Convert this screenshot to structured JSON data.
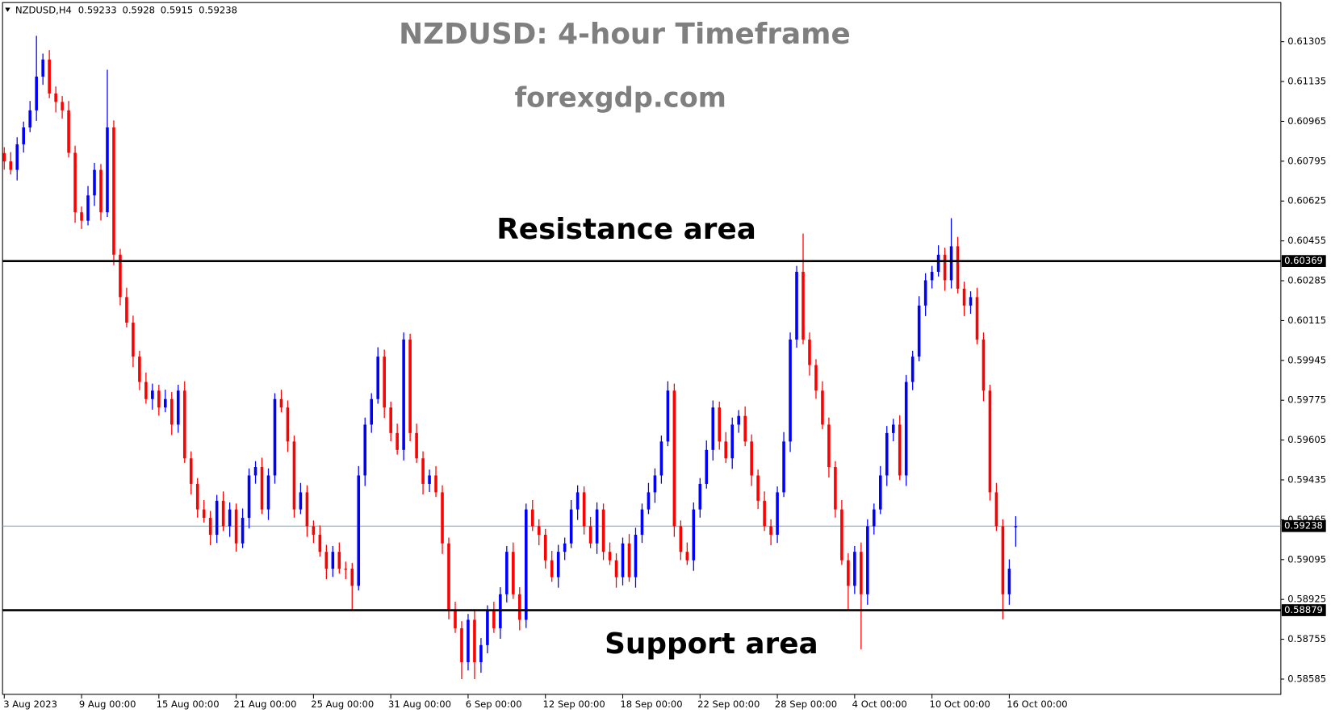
{
  "chart_data": {
    "type": "candlestick",
    "symbol": "NZDUSD,H4",
    "title": "NZDUSD: 4-hour Timeframe",
    "subtitle": "forexgdp.com",
    "up_color": "#0000ff",
    "down_color": "#ff0000",
    "ylim": [
      0.5852,
      0.61472
    ],
    "yticks": [
      0.61305,
      0.61135,
      0.60965,
      0.60795,
      0.60625,
      0.60455,
      0.60285,
      0.60115,
      0.59945,
      0.59775,
      0.59605,
      0.59435,
      0.59265,
      0.59095,
      0.58925,
      0.58755,
      0.58585
    ],
    "levels": [
      {
        "name": "Resistance area",
        "value": 0.60369
      },
      {
        "name": "Support area",
        "value": 0.58879
      }
    ],
    "categories": [
      "3 Aug 2023",
      null,
      null,
      null,
      null,
      null,
      null,
      null,
      null,
      null,
      null,
      null,
      "9 Aug 00:00",
      null,
      null,
      null,
      null,
      null,
      null,
      null,
      null,
      null,
      null,
      null,
      "15 Aug 00:00",
      null,
      null,
      null,
      null,
      null,
      null,
      null,
      null,
      null,
      null,
      null,
      "21 Aug 00:00",
      null,
      null,
      null,
      null,
      null,
      null,
      null,
      null,
      null,
      null,
      null,
      "25 Aug 00:00",
      null,
      null,
      null,
      null,
      null,
      null,
      null,
      null,
      null,
      null,
      null,
      "31 Aug 00:00",
      null,
      null,
      null,
      null,
      null,
      null,
      null,
      null,
      null,
      null,
      null,
      "6 Sep 00:00",
      null,
      null,
      null,
      null,
      null,
      null,
      null,
      null,
      null,
      null,
      null,
      "12 Sep 00:00",
      null,
      null,
      null,
      null,
      null,
      null,
      null,
      null,
      null,
      null,
      null,
      "18 Sep 00:00",
      null,
      null,
      null,
      null,
      null,
      null,
      null,
      null,
      null,
      null,
      null,
      "22 Sep 00:00",
      null,
      null,
      null,
      null,
      null,
      null,
      null,
      null,
      null,
      null,
      null,
      "28 Sep 00:00",
      null,
      null,
      null,
      null,
      null,
      null,
      null,
      null,
      null,
      null,
      null,
      "4 Oct 00:00",
      null,
      null,
      null,
      null,
      null,
      null,
      null,
      null,
      null,
      null,
      null,
      "10 Oct 00:00",
      null,
      null,
      null,
      null,
      null,
      null,
      null,
      null,
      null,
      null,
      null,
      "16 Oct 00:00",
      null
    ],
    "values": [
      [
        0.6083,
        0.60855,
        0.60759,
        0.60794
      ],
      [
        0.60794,
        0.60834,
        0.60738,
        0.60758
      ],
      [
        0.60758,
        0.60897,
        0.60713,
        0.60867
      ],
      [
        0.60867,
        0.60964,
        0.60832,
        0.60939
      ],
      [
        0.60939,
        0.61052,
        0.60919,
        0.61012
      ],
      [
        0.61012,
        0.6133,
        0.60967,
        0.61156
      ],
      [
        0.61156,
        0.61254,
        0.61121,
        0.61229
      ],
      [
        0.61229,
        0.61269,
        0.61064,
        0.61084
      ],
      [
        0.61084,
        0.61114,
        0.61003,
        0.61048
      ],
      [
        0.61048,
        0.61073,
        0.60977,
        0.61012
      ],
      [
        0.61012,
        0.61052,
        0.60811,
        0.60831
      ],
      [
        0.60831,
        0.60861,
        0.60532,
        0.60577
      ],
      [
        0.60577,
        0.60602,
        0.60506,
        0.60541
      ],
      [
        0.60541,
        0.60689,
        0.60521,
        0.60649
      ],
      [
        0.60649,
        0.60788,
        0.60604,
        0.60758
      ],
      [
        0.60758,
        0.60783,
        0.60542,
        0.60577
      ],
      [
        0.60577,
        0.61185,
        0.60557,
        0.60939
      ],
      [
        0.60939,
        0.60969,
        0.60351,
        0.60396
      ],
      [
        0.60396,
        0.60421,
        0.6018,
        0.60215
      ],
      [
        0.60215,
        0.60255,
        0.60086,
        0.60106
      ],
      [
        0.60106,
        0.60136,
        0.59916,
        0.59961
      ],
      [
        0.59961,
        0.59986,
        0.59818,
        0.59853
      ],
      [
        0.59853,
        0.59893,
        0.5976,
        0.5978
      ],
      [
        0.5978,
        0.59846,
        0.59735,
        0.59816
      ],
      [
        0.59816,
        0.59841,
        0.59709,
        0.59744
      ],
      [
        0.59744,
        0.5982,
        0.59724,
        0.5978
      ],
      [
        0.5978,
        0.5981,
        0.59626,
        0.59671
      ],
      [
        0.59671,
        0.59841,
        0.59636,
        0.59816
      ],
      [
        0.59816,
        0.59856,
        0.59507,
        0.59527
      ],
      [
        0.59527,
        0.59557,
        0.59373,
        0.59418
      ],
      [
        0.59418,
        0.59443,
        0.59274,
        0.59309
      ],
      [
        0.59309,
        0.59349,
        0.59253,
        0.59273
      ],
      [
        0.59273,
        0.59303,
        0.59156,
        0.59201
      ],
      [
        0.59201,
        0.59371,
        0.59166,
        0.59346
      ],
      [
        0.59346,
        0.59386,
        0.59217,
        0.59237
      ],
      [
        0.59237,
        0.59339,
        0.59192,
        0.59309
      ],
      [
        0.59309,
        0.59334,
        0.59129,
        0.59164
      ],
      [
        0.59164,
        0.59313,
        0.59144,
        0.59273
      ],
      [
        0.59273,
        0.59484,
        0.59228,
        0.59454
      ],
      [
        0.59454,
        0.59515,
        0.59419,
        0.5949
      ],
      [
        0.5949,
        0.5953,
        0.59289,
        0.59309
      ],
      [
        0.59309,
        0.59484,
        0.59264,
        0.59454
      ],
      [
        0.59454,
        0.59805,
        0.59419,
        0.5978
      ],
      [
        0.5978,
        0.5982,
        0.59724,
        0.59744
      ],
      [
        0.59744,
        0.59774,
        0.59554,
        0.59599
      ],
      [
        0.59599,
        0.59624,
        0.59274,
        0.59309
      ],
      [
        0.59309,
        0.59422,
        0.59289,
        0.59382
      ],
      [
        0.59382,
        0.59412,
        0.59192,
        0.59237
      ],
      [
        0.59237,
        0.59262,
        0.59166,
        0.59201
      ],
      [
        0.59201,
        0.59241,
        0.59108,
        0.59128
      ],
      [
        0.59128,
        0.59158,
        0.59011,
        0.59056
      ],
      [
        0.59056,
        0.59153,
        0.59021,
        0.59128
      ],
      [
        0.59128,
        0.59168,
        0.59036,
        0.59056
      ],
      [
        0.59056,
        0.59086,
        0.59011,
        0.59056
      ],
      [
        0.59056,
        0.59081,
        0.58879,
        0.58983
      ],
      [
        0.58983,
        0.59494,
        0.58963,
        0.59454
      ],
      [
        0.59454,
        0.59701,
        0.59409,
        0.59671
      ],
      [
        0.59671,
        0.59805,
        0.59636,
        0.5978
      ],
      [
        0.5978,
        0.60001,
        0.5976,
        0.59961
      ],
      [
        0.59961,
        0.59991,
        0.59699,
        0.59744
      ],
      [
        0.59744,
        0.59769,
        0.596,
        0.59635
      ],
      [
        0.59635,
        0.59675,
        0.59543,
        0.59563
      ],
      [
        0.59563,
        0.60064,
        0.59518,
        0.60034
      ],
      [
        0.60034,
        0.60059,
        0.596,
        0.59635
      ],
      [
        0.59635,
        0.59675,
        0.59507,
        0.59527
      ],
      [
        0.59527,
        0.59557,
        0.59373,
        0.59418
      ],
      [
        0.59418,
        0.59479,
        0.59383,
        0.59454
      ],
      [
        0.59454,
        0.59494,
        0.59362,
        0.59382
      ],
      [
        0.59382,
        0.59412,
        0.59119,
        0.59164
      ],
      [
        0.59164,
        0.59189,
        0.5884,
        0.58875
      ],
      [
        0.58875,
        0.58915,
        0.58782,
        0.58802
      ],
      [
        0.58802,
        0.58832,
        0.58585,
        0.58657
      ],
      [
        0.58657,
        0.58863,
        0.58622,
        0.58838
      ],
      [
        0.58838,
        0.58878,
        0.58585,
        0.58657
      ],
      [
        0.58657,
        0.5876,
        0.58612,
        0.5873
      ],
      [
        0.5873,
        0.589,
        0.58695,
        0.58875
      ],
      [
        0.58875,
        0.58915,
        0.58782,
        0.58802
      ],
      [
        0.58802,
        0.58977,
        0.58757,
        0.58947
      ],
      [
        0.58947,
        0.59153,
        0.58912,
        0.59128
      ],
      [
        0.59128,
        0.59168,
        0.58927,
        0.58947
      ],
      [
        0.58947,
        0.58977,
        0.58793,
        0.58838
      ],
      [
        0.58838,
        0.59334,
        0.58803,
        0.59309
      ],
      [
        0.59309,
        0.59349,
        0.59217,
        0.59237
      ],
      [
        0.59237,
        0.59267,
        0.59156,
        0.59201
      ],
      [
        0.59201,
        0.59226,
        0.59057,
        0.59092
      ],
      [
        0.59092,
        0.59132,
        0.59,
        0.5902
      ],
      [
        0.5902,
        0.59158,
        0.58975,
        0.59128
      ],
      [
        0.59128,
        0.59189,
        0.59093,
        0.59164
      ],
      [
        0.59164,
        0.59349,
        0.59144,
        0.59309
      ],
      [
        0.59309,
        0.59412,
        0.59264,
        0.59382
      ],
      [
        0.59382,
        0.59407,
        0.59202,
        0.59237
      ],
      [
        0.59237,
        0.59277,
        0.59144,
        0.59164
      ],
      [
        0.59164,
        0.59339,
        0.59119,
        0.59309
      ],
      [
        0.59309,
        0.59334,
        0.59093,
        0.59128
      ],
      [
        0.59128,
        0.59168,
        0.59072,
        0.59092
      ],
      [
        0.59092,
        0.59122,
        0.58975,
        0.5902
      ],
      [
        0.5902,
        0.59189,
        0.58985,
        0.59164
      ],
      [
        0.59164,
        0.59204,
        0.59,
        0.5902
      ],
      [
        0.5902,
        0.59231,
        0.58975,
        0.59201
      ],
      [
        0.59201,
        0.59334,
        0.59166,
        0.59309
      ],
      [
        0.59309,
        0.59422,
        0.59289,
        0.59382
      ],
      [
        0.59382,
        0.59484,
        0.59337,
        0.59454
      ],
      [
        0.59454,
        0.59624,
        0.59419,
        0.59599
      ],
      [
        0.59599,
        0.59856,
        0.59579,
        0.59816
      ],
      [
        0.59816,
        0.59846,
        0.59192,
        0.59237
      ],
      [
        0.59237,
        0.59262,
        0.59093,
        0.59128
      ],
      [
        0.59128,
        0.59168,
        0.59072,
        0.59092
      ],
      [
        0.59092,
        0.59339,
        0.59047,
        0.59309
      ],
      [
        0.59309,
        0.59443,
        0.59274,
        0.59418
      ],
      [
        0.59418,
        0.59603,
        0.59398,
        0.59563
      ],
      [
        0.59563,
        0.59774,
        0.59518,
        0.59744
      ],
      [
        0.59744,
        0.59769,
        0.59564,
        0.59599
      ],
      [
        0.59599,
        0.59639,
        0.59507,
        0.59527
      ],
      [
        0.59527,
        0.59701,
        0.59482,
        0.59671
      ],
      [
        0.59671,
        0.59733,
        0.59636,
        0.59708
      ],
      [
        0.59708,
        0.59748,
        0.59579,
        0.59599
      ],
      [
        0.59599,
        0.59629,
        0.59409,
        0.59454
      ],
      [
        0.59454,
        0.59479,
        0.59311,
        0.59346
      ],
      [
        0.59346,
        0.59386,
        0.59217,
        0.59237
      ],
      [
        0.59237,
        0.59267,
        0.59156,
        0.59201
      ],
      [
        0.59201,
        0.59407,
        0.59166,
        0.59382
      ],
      [
        0.59382,
        0.59639,
        0.59362,
        0.59599
      ],
      [
        0.59599,
        0.60064,
        0.59554,
        0.60034
      ],
      [
        0.60034,
        0.60348,
        0.59999,
        0.60323
      ],
      [
        0.60323,
        0.60486,
        0.60014,
        0.60034
      ],
      [
        0.60034,
        0.60064,
        0.5988,
        0.59925
      ],
      [
        0.59925,
        0.5995,
        0.59781,
        0.59816
      ],
      [
        0.59816,
        0.59856,
        0.59651,
        0.59671
      ],
      [
        0.59671,
        0.59701,
        0.59445,
        0.5949
      ],
      [
        0.5949,
        0.59515,
        0.59274,
        0.59309
      ],
      [
        0.59309,
        0.59349,
        0.59072,
        0.59092
      ],
      [
        0.59092,
        0.59122,
        0.58879,
        0.58983
      ],
      [
        0.58983,
        0.59153,
        0.58948,
        0.59128
      ],
      [
        0.59128,
        0.59168,
        0.58712,
        0.58947
      ],
      [
        0.58947,
        0.59267,
        0.58902,
        0.59237
      ],
      [
        0.59237,
        0.59334,
        0.59202,
        0.59309
      ],
      [
        0.59309,
        0.59494,
        0.59289,
        0.59454
      ],
      [
        0.59454,
        0.59665,
        0.59409,
        0.59635
      ],
      [
        0.59635,
        0.59696,
        0.596,
        0.59671
      ],
      [
        0.59671,
        0.59711,
        0.59434,
        0.59454
      ],
      [
        0.59454,
        0.59883,
        0.59409,
        0.59853
      ],
      [
        0.59853,
        0.59986,
        0.59818,
        0.59961
      ],
      [
        0.59961,
        0.60219,
        0.59941,
        0.60179
      ],
      [
        0.60179,
        0.60317,
        0.60134,
        0.60287
      ],
      [
        0.60287,
        0.60348,
        0.60252,
        0.60323
      ],
      [
        0.60323,
        0.60436,
        0.60303,
        0.60396
      ],
      [
        0.60396,
        0.60426,
        0.60242,
        0.60287
      ],
      [
        0.60287,
        0.60552,
        0.60252,
        0.60432
      ],
      [
        0.60432,
        0.60472,
        0.60231,
        0.60251
      ],
      [
        0.60251,
        0.60281,
        0.60134,
        0.60179
      ],
      [
        0.60179,
        0.6024,
        0.60144,
        0.60215
      ],
      [
        0.60215,
        0.60255,
        0.60014,
        0.60034
      ],
      [
        0.60034,
        0.60064,
        0.59771,
        0.59816
      ],
      [
        0.59816,
        0.59841,
        0.59347,
        0.59382
      ],
      [
        0.59382,
        0.59422,
        0.59217,
        0.59237
      ],
      [
        0.59237,
        0.59267,
        0.5884,
        0.58947
      ],
      [
        0.58947,
        0.59096,
        0.58902,
        0.59056
      ],
      [
        0.59233,
        0.5928,
        0.5915,
        0.59238
      ]
    ]
  }
}
